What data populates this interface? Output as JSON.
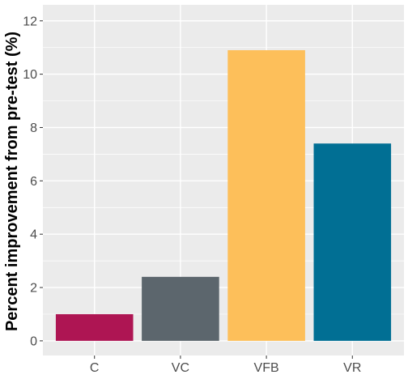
{
  "chart_data": {
    "type": "bar",
    "title": "",
    "xlabel": "",
    "ylabel": "Percent improvement from pre-test (%)",
    "categories": [
      "C",
      "VC",
      "VFB",
      "VR"
    ],
    "values": [
      1.0,
      2.4,
      10.9,
      7.4
    ],
    "colors": [
      "#ae1553",
      "#5c666d",
      "#fdbf5a",
      "#016f94"
    ],
    "ylim": [
      -0.55,
      12.6
    ],
    "yticks": [
      0,
      2,
      4,
      6,
      8,
      10,
      12
    ],
    "ytick_labels": [
      "0",
      "2",
      "4",
      "6",
      "8",
      "10",
      "12"
    ],
    "grid": true,
    "panel_background": "#ebebeb",
    "legend": "none"
  }
}
